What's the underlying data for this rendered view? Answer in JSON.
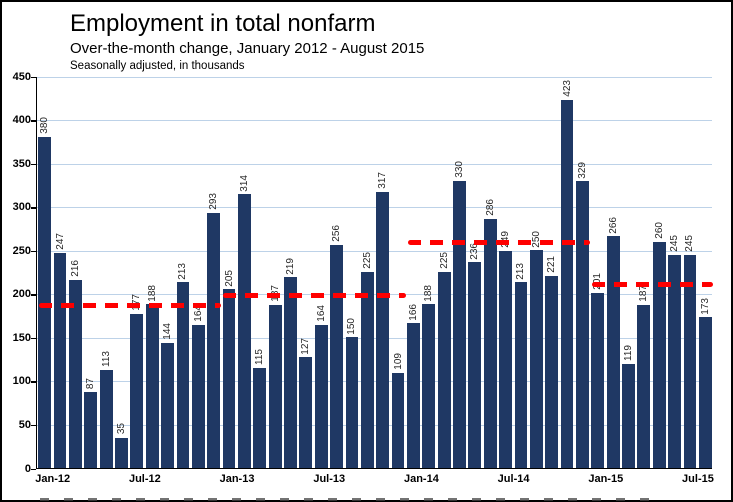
{
  "header": {
    "title": "Employment in total nonfarm",
    "subtitle": "Over-the-month change, January 2012 - August 2015",
    "note": "Seasonally adjusted, in thousands"
  },
  "chart_data": {
    "type": "bar",
    "title": "Employment in total nonfarm",
    "subtitle": "Over-the-month change, January 2012 - August 2015",
    "note": "Seasonally adjusted, in thousands",
    "xlabel": "",
    "ylabel": "",
    "grid": true,
    "legend_position": "none",
    "ylim": [
      0,
      450
    ],
    "yticks": [
      0,
      50,
      100,
      150,
      200,
      250,
      300,
      350,
      400,
      450
    ],
    "categories": [
      "Jan-12",
      "Feb-12",
      "Mar-12",
      "Apr-12",
      "May-12",
      "Jun-12",
      "Jul-12",
      "Aug-12",
      "Sep-12",
      "Oct-12",
      "Nov-12",
      "Dec-12",
      "Jan-13",
      "Feb-13",
      "Mar-13",
      "Apr-13",
      "May-13",
      "Jun-13",
      "Jul-13",
      "Aug-13",
      "Sep-13",
      "Oct-13",
      "Nov-13",
      "Dec-13",
      "Jan-14",
      "Feb-14",
      "Mar-14",
      "Apr-14",
      "May-14",
      "Jun-14",
      "Jul-14",
      "Aug-14",
      "Sep-14",
      "Oct-14",
      "Nov-14",
      "Dec-14",
      "Jan-15",
      "Feb-15",
      "Mar-15",
      "Apr-15",
      "May-15",
      "Jun-15",
      "Jul-15",
      "Aug-15"
    ],
    "values": [
      380,
      247,
      216,
      87,
      113,
      35,
      177,
      188,
      144,
      213,
      164,
      293,
      205,
      314,
      115,
      187,
      219,
      127,
      164,
      256,
      150,
      225,
      317,
      109,
      166,
      188,
      225,
      330,
      236,
      286,
      249,
      213,
      250,
      221,
      423,
      329,
      201,
      266,
      119,
      187,
      260,
      245,
      245,
      173
    ],
    "xtick_labels": [
      "Jan-12",
      "Jul-12",
      "Jan-13",
      "Jul-13",
      "Jan-14",
      "Jul-14",
      "Jan-15",
      "Jul-15"
    ],
    "xtick_indices": [
      0,
      6,
      12,
      18,
      24,
      30,
      36,
      42
    ],
    "annual_average_lines": [
      {
        "year": "2012",
        "value": 188,
        "start_index": 0,
        "end_index": 11,
        "extend_to_right_edge": false
      },
      {
        "year": "2013",
        "value": 199,
        "start_index": 12,
        "end_index": 23,
        "extend_to_right_edge": false
      },
      {
        "year": "2014",
        "value": 260,
        "start_index": 24,
        "end_index": 35,
        "extend_to_right_edge": false
      },
      {
        "year": "2015",
        "value": 212,
        "start_index": 36,
        "end_index": 43,
        "extend_to_right_edge": true
      }
    ],
    "colors": {
      "bar": "#1F3864",
      "gridline": "#BDD2E8",
      "average_line": "#FF0000",
      "axis": "#000000",
      "value_label": "#262626"
    }
  }
}
